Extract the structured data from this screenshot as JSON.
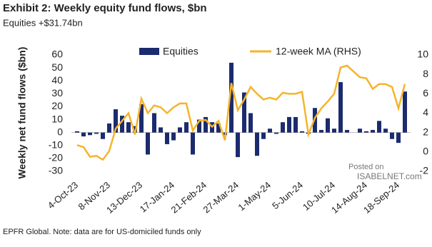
{
  "chart_data": {
    "type": "bar-line",
    "title": "Exhibit 2: Weekly equity fund flows, $bn",
    "subtitle": "Equities +$31.74bn",
    "y_label": "Weekly net fund flows ($bn)",
    "footnote": "EPFR Global. Note: data are for US-domiciled funds only",
    "watermark": [
      "Posted on",
      "ISABELNET.com"
    ],
    "categories": [
      "4-Oct-23",
      null,
      null,
      null,
      null,
      "8-Nov-23",
      null,
      null,
      null,
      null,
      "13-Dec-23",
      null,
      null,
      null,
      null,
      "17-Jan-24",
      null,
      null,
      null,
      null,
      "21-Feb-24",
      null,
      null,
      null,
      null,
      "27-Mar-24",
      null,
      null,
      null,
      null,
      "1-May-24",
      null,
      null,
      null,
      null,
      "5-Jun-24",
      null,
      null,
      null,
      null,
      "10-Jul-24",
      null,
      null,
      null,
      null,
      "14-Aug-24",
      null,
      null,
      null,
      null,
      "18-Sep-24",
      null
    ],
    "series": [
      {
        "name": "Equities",
        "color": "#1c2b6e",
        "kind": "bar",
        "values": [
          1,
          -3,
          -2,
          -1,
          -5,
          7,
          18,
          13,
          8,
          5,
          22,
          -17,
          15,
          4,
          -9,
          -6,
          4,
          8,
          -17,
          10,
          12,
          8,
          7,
          -2,
          54,
          -19,
          31,
          15,
          -18,
          -5,
          3,
          -1,
          8,
          12,
          12,
          1,
          -1,
          19,
          2,
          11,
          3,
          39,
          2,
          0,
          3,
          1,
          2,
          9,
          3,
          -5,
          -8,
          31.74
        ]
      },
      {
        "name": "12-week MA (RHS)",
        "color": "#f6b42a",
        "kind": "line",
        "axis": "y2",
        "values": [
          0.7,
          0.5,
          -0.5,
          -0.4,
          -0.8,
          0.1,
          2.4,
          3.2,
          4.0,
          1.8,
          5.5,
          4.0,
          4.8,
          4.6,
          4.0,
          4.6,
          5.0,
          5.0,
          2.2,
          3.2,
          3.3,
          2.6,
          3.2,
          1.2,
          7.1,
          4.3,
          5.4,
          6.7,
          6.0,
          5.4,
          5.6,
          5.4,
          6.1,
          6.0,
          6.0,
          6.2,
          1.8,
          3.5,
          4.5,
          5.2,
          6.0,
          8.7,
          8.9,
          8.3,
          7.7,
          7.6,
          6.5,
          7.0,
          7.0,
          6.7,
          4.5,
          7.0
        ]
      }
    ],
    "ylim": [
      -30,
      60
    ],
    "yticks": [
      -30,
      -20,
      -10,
      0,
      10,
      20,
      30,
      40,
      50,
      60
    ],
    "y2lim": [
      -2,
      10
    ],
    "y2ticks": [
      -2,
      0,
      2,
      4,
      6,
      8,
      10
    ],
    "grid": false,
    "legend": "top"
  }
}
